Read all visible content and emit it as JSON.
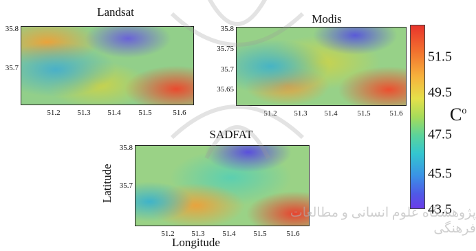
{
  "chart_data": [
    {
      "type": "heatmap",
      "title": "Landsat",
      "x_ticks": [
        "51.2",
        "51.3",
        "51.4",
        "51.5",
        "51.6"
      ],
      "y_ticks": [
        "35.8",
        "35.7"
      ]
    },
    {
      "type": "heatmap",
      "title": "Modis",
      "x_ticks": [
        "51.2",
        "51.3",
        "51.4",
        "51.5",
        "51.6"
      ],
      "y_ticks": [
        "35.8",
        "35.75",
        "35.7",
        "35.65"
      ]
    },
    {
      "type": "heatmap",
      "title": "SADFAT",
      "xlabel": "Longitude",
      "ylabel": "Latitude",
      "x_ticks": [
        "51.2",
        "51.3",
        "51.4",
        "51.5",
        "51.6"
      ],
      "y_ticks": [
        "35.8",
        "35.7"
      ]
    }
  ],
  "colorbar": {
    "unit_base": "C",
    "unit_sup": "o",
    "ticks": [
      "51.5",
      "49.5",
      "47.5",
      "45.5",
      "43.5"
    ],
    "range": [
      43.5,
      52.5
    ]
  },
  "watermark": {
    "text": "پژوهشگاه علوم انسانی و مطالعات فرهنگی",
    "color": "#b0b0b0"
  }
}
